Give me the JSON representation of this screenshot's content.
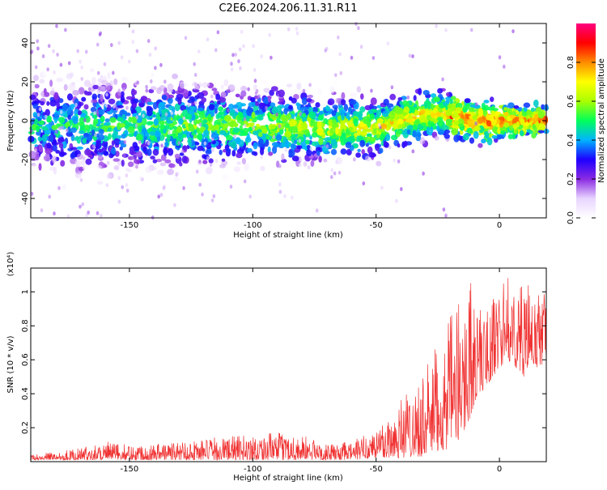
{
  "figure_title": "C2E6.2024.206.11.31.R11",
  "chart_data": [
    {
      "type": "heatmap",
      "title": "",
      "xlabel": "Height of straight line (km)",
      "ylabel": "Frequency (Hz)",
      "xlim": [
        -190,
        19
      ],
      "ylim": [
        -50,
        50
      ],
      "xticks": [
        -150,
        -100,
        -50,
        0
      ],
      "yticks": [
        -40,
        -20,
        0,
        20,
        40
      ],
      "colorbar": {
        "label": "Normalized spectral amplitude",
        "range": [
          0,
          1
        ],
        "ticks": [
          "0.0",
          "0.2",
          "0.4",
          "0.6",
          "0.8"
        ],
        "colors": [
          "#ffffff",
          "#e8d4ff",
          "#8a2be2",
          "#1e00ff",
          "#00b4ff",
          "#00ff5a",
          "#aaff00",
          "#ffff00",
          "#ff8c00",
          "#ff0000",
          "#ff0080"
        ]
      },
      "trend": {
        "description": "band of energy centred on ~-3 Hz, narrowing and brightening toward the top of the profile",
        "center_frequency": [
          {
            "x": -180,
            "y": -3
          },
          {
            "x": -150,
            "y": -3
          },
          {
            "x": -100,
            "y": -2
          },
          {
            "x": -70,
            "y": -4
          },
          {
            "x": -50,
            "y": -4
          },
          {
            "x": -35,
            "y": 2
          },
          {
            "x": -25,
            "y": 4
          },
          {
            "x": -10,
            "y": 0
          },
          {
            "x": 0,
            "y": 0
          },
          {
            "x": 18,
            "y": 0
          }
        ]
      }
    },
    {
      "type": "line",
      "title": "",
      "xlabel": "Height of straight line (km)",
      "ylabel": "SNR (10 * v/v)",
      "scale_label": "(x10⁴)",
      "xlim": [
        -190,
        19
      ],
      "ylim": [
        0,
        1.14
      ],
      "xticks": [
        -150,
        -100,
        -50,
        0
      ],
      "yticks": [
        "0.2",
        "0.4",
        "0.6",
        "0.8",
        "1"
      ],
      "color": "#f03232",
      "envelope": {
        "x": [
          -190,
          -170,
          -160,
          -150,
          -130,
          -110,
          -90,
          -80,
          -70,
          -60,
          -50,
          -45,
          -40,
          -35,
          -30,
          -25,
          -20,
          -15,
          -12,
          -10,
          -5,
          0,
          3,
          7,
          10,
          13,
          16,
          19
        ],
        "y_low": [
          0.01,
          0.01,
          0.01,
          0.01,
          0.01,
          0.01,
          0.01,
          0.01,
          0.01,
          0.01,
          0.02,
          0.02,
          0.02,
          0.03,
          0.03,
          0.05,
          0.08,
          0.15,
          0.25,
          0.35,
          0.45,
          0.55,
          0.6,
          0.55,
          0.5,
          0.55,
          0.55,
          0.6
        ],
        "y_high": [
          0.04,
          0.08,
          0.12,
          0.1,
          0.12,
          0.15,
          0.17,
          0.16,
          0.1,
          0.12,
          0.2,
          0.28,
          0.4,
          0.45,
          0.55,
          0.7,
          0.85,
          1.0,
          1.12,
          0.95,
          0.9,
          1.05,
          1.1,
          1.0,
          1.1,
          1.0,
          1.0,
          1.05
        ]
      }
    }
  ]
}
